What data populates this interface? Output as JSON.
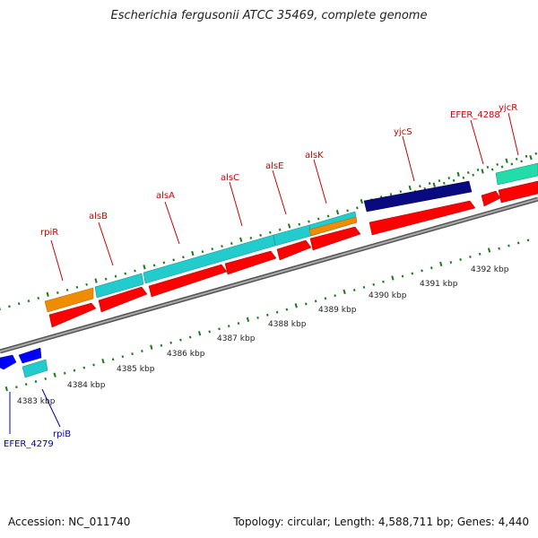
{
  "title": "Escherichia fergusonii ATCC 35469, complete genome",
  "footer": {
    "accession": "Accession: NC_011740",
    "summary": "Topology: circular; Length: 4,588,711 bp; Genes: 4,440"
  },
  "colors": {
    "cds": "#ff0000",
    "cyan_track": "#22cccc",
    "orange_track": "#f08c00",
    "navy_track": "#0a0a80",
    "blue_gene": "#0000ff",
    "teal_gene": "#22ddaa",
    "tick": "#1a7a1a",
    "backbone": "#888888",
    "label_forward": "#cc0000",
    "label_reverse": "#0000aa"
  },
  "scale_labels": [
    "4383 kbp",
    "4384 kbp",
    "4385 kbp",
    "4386 kbp",
    "4387 kbp",
    "4388 kbp",
    "4389 kbp",
    "4390 kbp",
    "4391 kbp",
    "4392 kbp"
  ],
  "forward_gene_labels": [
    "rpiR",
    "alsB",
    "alsA",
    "alsC",
    "alsE",
    "alsK",
    "yjcS",
    "EFER_4288",
    "yjcR"
  ],
  "reverse_gene_labels": [
    "EFER_4279",
    "rpiB"
  ]
}
